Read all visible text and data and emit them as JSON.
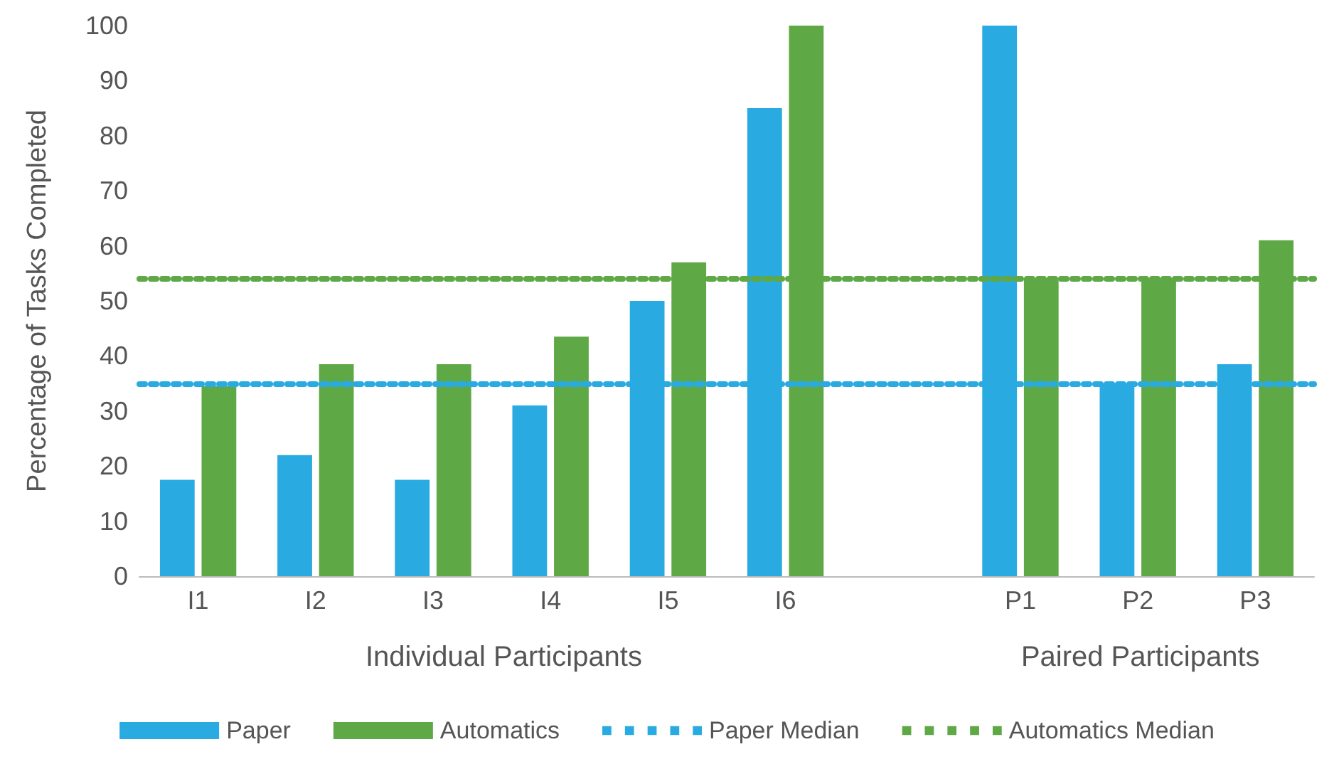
{
  "chart_data": {
    "type": "bar",
    "ylabel": "Percentage of Tasks Completed",
    "categories": [
      "I1",
      "I2",
      "I3",
      "I4",
      "I5",
      "I6",
      null,
      "P1",
      "P2",
      "P3"
    ],
    "series": [
      {
        "name": "Paper",
        "color": "#29abe2",
        "values": [
          17.5,
          22,
          17.5,
          31,
          50,
          85,
          null,
          100,
          35,
          38.5
        ]
      },
      {
        "name": "Automatics",
        "color": "#5fa846",
        "values": [
          34.5,
          38.5,
          38.5,
          43.5,
          57,
          100,
          null,
          54,
          54,
          61
        ]
      }
    ],
    "ylim": [
      0,
      100
    ],
    "yticks": [
      0,
      10,
      20,
      30,
      40,
      50,
      60,
      70,
      80,
      90,
      100
    ],
    "ref_lines": [
      {
        "axis": "y",
        "value": 35,
        "label": "Paper Median",
        "color": "#29abe2",
        "line_style": "dotted"
      },
      {
        "axis": "y",
        "value": 54,
        "label": "Automatics Median",
        "color": "#5fa846",
        "line_style": "dotted"
      }
    ],
    "annotations": [
      "Individual Participants",
      "Paired Participants"
    ],
    "grid": false,
    "legend": "bottom"
  }
}
